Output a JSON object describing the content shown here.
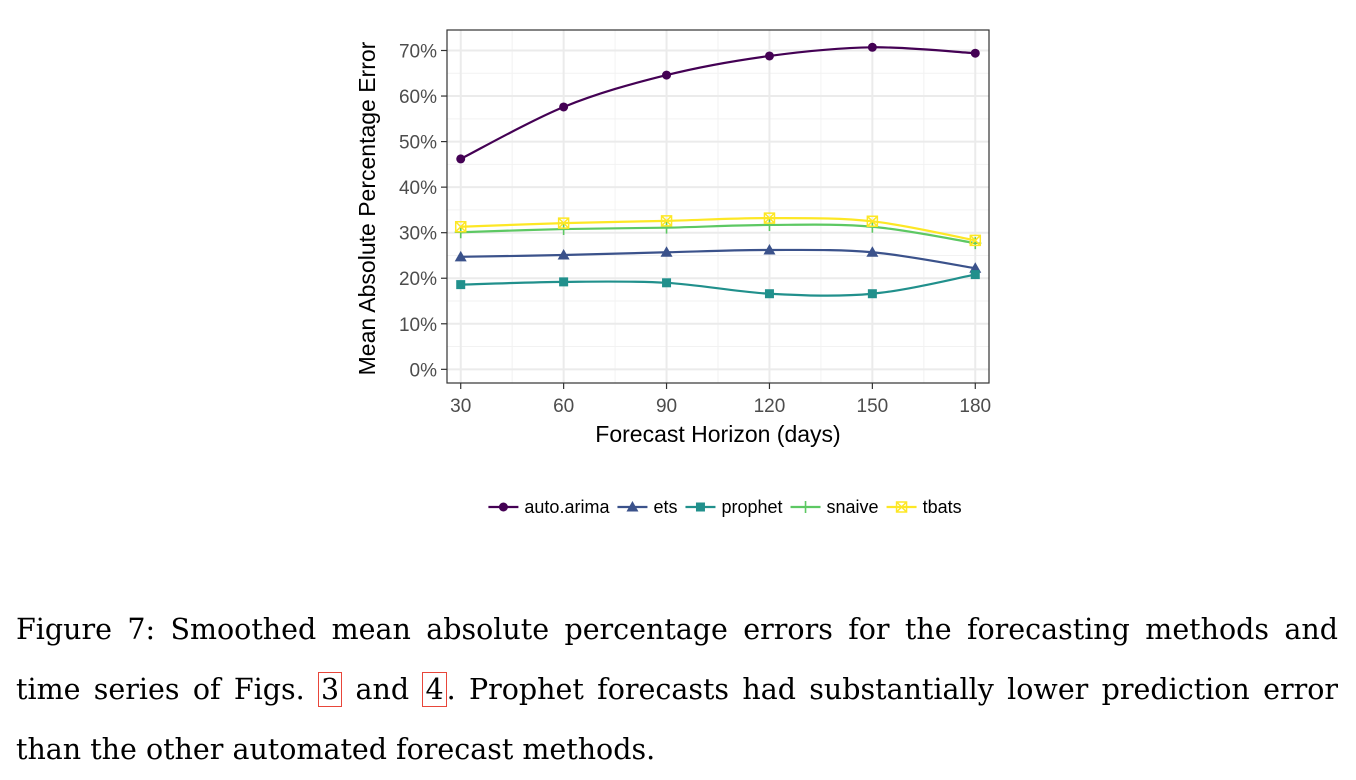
{
  "chart_data": {
    "type": "line",
    "xlabel": "Forecast Horizon (days)",
    "ylabel": "Mean Absolute Percentage Error",
    "x": [
      30,
      60,
      90,
      120,
      150,
      180
    ],
    "xlim": [
      26,
      184
    ],
    "ylim": [
      -0.03,
      0.745
    ],
    "x_ticks": [
      "30",
      "60",
      "90",
      "120",
      "150",
      "180"
    ],
    "y_ticks": [
      0,
      0.1,
      0.2,
      0.3,
      0.4,
      0.5,
      0.6,
      0.7
    ],
    "y_tick_labels": [
      "0%",
      "10%",
      "20%",
      "30%",
      "40%",
      "50%",
      "60%",
      "70%"
    ],
    "grid": true,
    "legend_position": "bottom",
    "series": [
      {
        "name": "auto.arima",
        "color": "#440154",
        "marker": "circle",
        "values": [
          0.462,
          0.576,
          0.646,
          0.688,
          0.707,
          0.694
        ]
      },
      {
        "name": "ets",
        "color": "#3b528b",
        "marker": "triangle",
        "values": [
          0.247,
          0.251,
          0.257,
          0.262,
          0.257,
          0.222
        ]
      },
      {
        "name": "prophet",
        "color": "#21908c",
        "marker": "square",
        "values": [
          0.186,
          0.192,
          0.19,
          0.166,
          0.166,
          0.208
        ]
      },
      {
        "name": "snaive",
        "color": "#5dc863",
        "marker": "plus",
        "values": [
          0.301,
          0.308,
          0.311,
          0.317,
          0.313,
          0.277
        ]
      },
      {
        "name": "tbats",
        "color": "#fde725",
        "marker": "square-cross",
        "values": [
          0.313,
          0.321,
          0.326,
          0.332,
          0.325,
          0.283
        ]
      }
    ]
  },
  "caption": {
    "text_before": "Figure 7: Smoothed mean absolute percentage errors for the forecasting methods and time series of Figs. ",
    "ref1": "3",
    "text_between": " and ",
    "ref2": "4",
    "text_after": ". Prophet forecasts had substantially lower prediction error than the other automated forecast methods."
  }
}
